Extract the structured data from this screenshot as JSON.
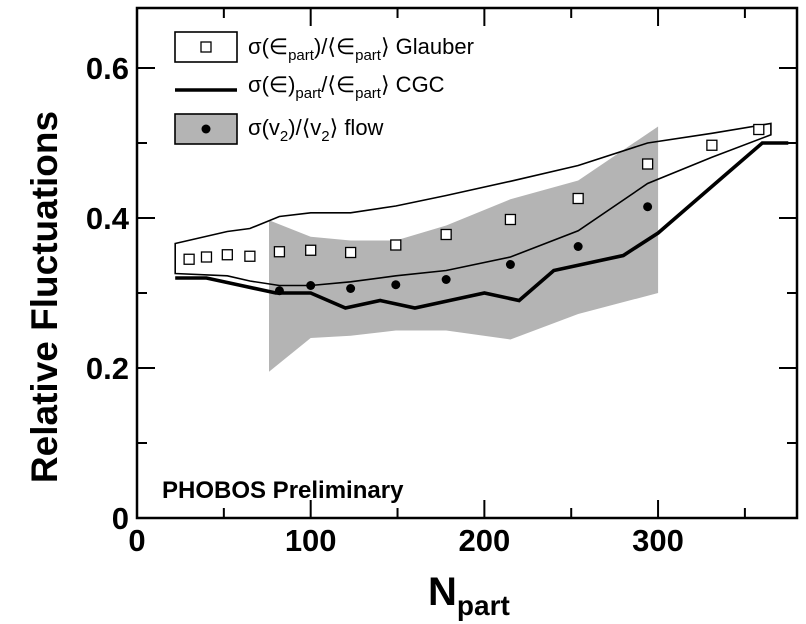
{
  "chart_data": {
    "type": "line",
    "title": "",
    "xlabel": "N",
    "xlabel_sub": "part",
    "ylabel": "Relative Fluctuations",
    "xlim": [
      0,
      380
    ],
    "ylim": [
      0,
      0.68
    ],
    "x_ticks": [
      0,
      100,
      200,
      300
    ],
    "x_tick_labels": [
      "0",
      "100",
      "200",
      "300"
    ],
    "y_ticks": [
      0,
      0.2,
      0.4,
      0.6
    ],
    "y_tick_labels": [
      "0",
      "0.2",
      "0.4",
      "0.6"
    ],
    "grid": false,
    "legend_position": "top-left",
    "annotation": "PHOBOS Preliminary",
    "legend": [
      {
        "id": "glauber",
        "parts": [
          [
            "σ(∈",
            ""
          ],
          [
            "part",
            "sub"
          ],
          [
            ")/⟨∈",
            ""
          ],
          [
            "part",
            "sub"
          ],
          [
            "⟩ Glauber",
            ""
          ]
        ]
      },
      {
        "id": "cgc",
        "parts": [
          [
            "σ(∈)",
            ""
          ],
          [
            "part",
            "sub"
          ],
          [
            "/⟨∈",
            ""
          ],
          [
            "part",
            "sub"
          ],
          [
            "⟩ CGC",
            ""
          ]
        ]
      },
      {
        "id": "flow",
        "parts": [
          [
            "σ(v",
            ""
          ],
          [
            "2",
            "sub"
          ],
          [
            ")/⟨v",
            ""
          ],
          [
            "2",
            "sub"
          ],
          [
            "⟩ flow",
            ""
          ]
        ]
      }
    ],
    "series": [
      {
        "id": "glauber",
        "marker": "open-square",
        "points": [
          [
            30,
            0.345
          ],
          [
            40,
            0.348
          ],
          [
            52,
            0.351
          ],
          [
            65,
            0.349
          ],
          [
            82,
            0.355
          ],
          [
            100,
            0.357
          ],
          [
            123,
            0.354
          ],
          [
            149,
            0.364
          ],
          [
            178,
            0.378
          ],
          [
            215,
            0.398
          ],
          [
            254,
            0.426
          ],
          [
            294,
            0.472
          ],
          [
            331,
            0.497
          ],
          [
            358,
            0.518
          ]
        ],
        "band_upper": [
          [
            22,
            0.366
          ],
          [
            52,
            0.382
          ],
          [
            65,
            0.386
          ],
          [
            82,
            0.402
          ],
          [
            100,
            0.407
          ],
          [
            123,
            0.407
          ],
          [
            149,
            0.416
          ],
          [
            178,
            0.43
          ],
          [
            215,
            0.449
          ],
          [
            254,
            0.47
          ],
          [
            294,
            0.5
          ],
          [
            331,
            0.513
          ],
          [
            365,
            0.526
          ]
        ],
        "band_lower": [
          [
            365,
            0.511
          ],
          [
            331,
            0.481
          ],
          [
            294,
            0.446
          ],
          [
            254,
            0.383
          ],
          [
            215,
            0.348
          ],
          [
            178,
            0.33
          ],
          [
            149,
            0.323
          ],
          [
            123,
            0.315
          ],
          [
            100,
            0.31
          ],
          [
            82,
            0.31
          ],
          [
            65,
            0.316
          ],
          [
            52,
            0.323
          ],
          [
            22,
            0.326
          ]
        ]
      },
      {
        "id": "cgc",
        "marker": "thick-line",
        "points": [
          [
            22,
            0.32
          ],
          [
            40,
            0.32
          ],
          [
            60,
            0.31
          ],
          [
            80,
            0.3
          ],
          [
            100,
            0.3
          ],
          [
            120,
            0.28
          ],
          [
            140,
            0.29
          ],
          [
            160,
            0.28
          ],
          [
            180,
            0.29
          ],
          [
            200,
            0.3
          ],
          [
            220,
            0.29
          ],
          [
            240,
            0.33
          ],
          [
            260,
            0.34
          ],
          [
            280,
            0.35
          ],
          [
            300,
            0.38
          ],
          [
            320,
            0.42
          ],
          [
            340,
            0.46
          ],
          [
            360,
            0.5
          ],
          [
            375,
            0.5
          ]
        ]
      },
      {
        "id": "flow",
        "marker": "filled-circle",
        "points": [
          [
            82,
            0.303
          ],
          [
            100,
            0.31
          ],
          [
            123,
            0.306
          ],
          [
            149,
            0.311
          ],
          [
            178,
            0.318
          ],
          [
            215,
            0.338
          ],
          [
            254,
            0.362
          ],
          [
            294,
            0.415
          ]
        ],
        "band_upper": [
          [
            76,
            0.397
          ],
          [
            100,
            0.375
          ],
          [
            123,
            0.37
          ],
          [
            149,
            0.37
          ],
          [
            178,
            0.39
          ],
          [
            215,
            0.425
          ],
          [
            254,
            0.45
          ],
          [
            300,
            0.522
          ]
        ],
        "band_lower": [
          [
            300,
            0.3
          ],
          [
            254,
            0.272
          ],
          [
            215,
            0.238
          ],
          [
            178,
            0.25
          ],
          [
            149,
            0.25
          ],
          [
            123,
            0.243
          ],
          [
            100,
            0.24
          ],
          [
            76,
            0.195
          ]
        ]
      }
    ]
  }
}
